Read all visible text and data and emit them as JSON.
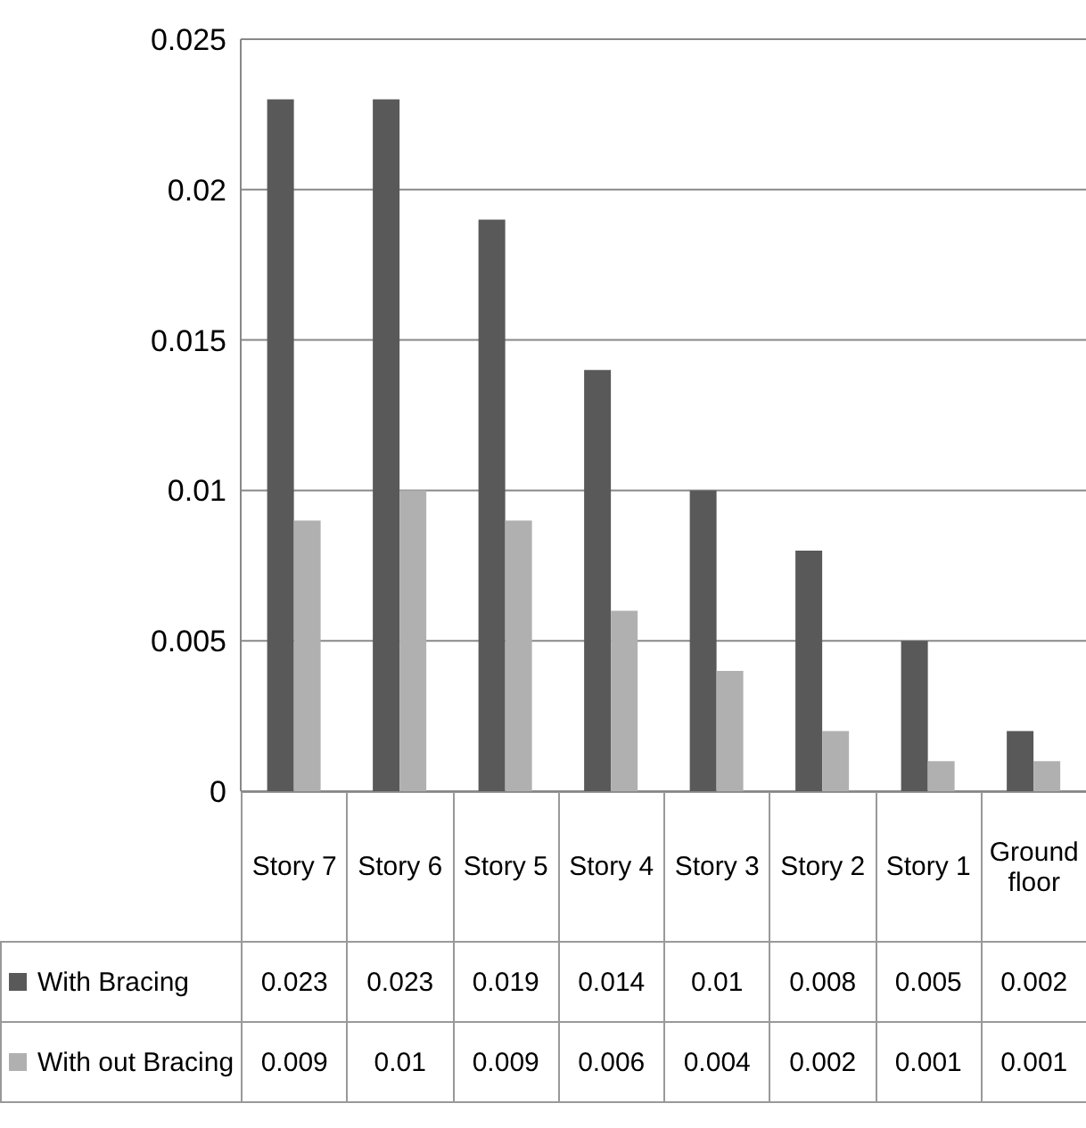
{
  "chart_data": {
    "type": "bar",
    "categories": [
      "Story 7",
      "Story 6",
      "Story 5",
      "Story 4",
      "Story 3",
      "Story 2",
      "Story 1",
      "Ground floor"
    ],
    "series": [
      {
        "name": "With Bracing",
        "color": "#595959",
        "values": [
          0.023,
          0.023,
          0.019,
          0.014,
          0.01,
          0.008,
          0.005,
          0.002
        ]
      },
      {
        "name": "With out Bracing",
        "color": "#b0b0b0",
        "values": [
          0.009,
          0.01,
          0.009,
          0.006,
          0.004,
          0.002,
          0.001,
          0.001
        ]
      }
    ],
    "ylim": [
      0,
      0.025
    ],
    "yticks": [
      0,
      0.005,
      0.01,
      0.015,
      0.02,
      0.025
    ],
    "grid": "y",
    "legend": "bottom",
    "data_labels": true
  }
}
